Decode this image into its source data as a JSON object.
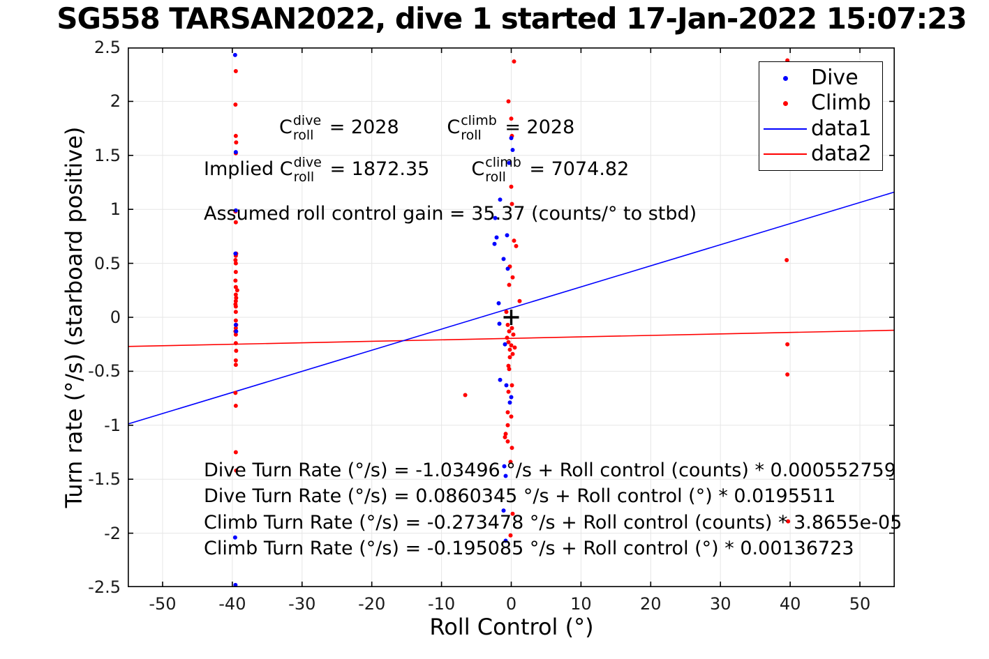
{
  "figure": {
    "background": "#ffffff",
    "axis_color": "#000000",
    "grid_color": "#e6e6e6",
    "dive_color": "#0000ff",
    "climb_color": "#ff0000"
  },
  "chart_data": {
    "type": "scatter",
    "title": "SG558 TARSAN2022, dive 1 started 17-Jan-2022 15:07:23",
    "xlabel": "Roll Control (°)",
    "ylabel": "Turn rate (°/s) (starboard positive)",
    "xlim": [
      -55,
      55
    ],
    "ylim": [
      -2.5,
      2.5
    ],
    "x_ticks": [
      -50,
      -40,
      -30,
      -20,
      -10,
      0,
      10,
      20,
      30,
      40,
      50
    ],
    "y_ticks": [
      -2.5,
      -2,
      -1.5,
      -1,
      -0.5,
      0,
      0.5,
      1,
      1.5,
      2,
      2.5
    ],
    "grid": true,
    "legend_position": "northeast",
    "legend": [
      {
        "label": "Dive",
        "marker": "dot",
        "color": "#0000ff"
      },
      {
        "label": "Climb",
        "marker": "dot",
        "color": "#ff0000"
      },
      {
        "label": "data1",
        "marker": "line",
        "color": "#0000ff"
      },
      {
        "label": "data2",
        "marker": "line",
        "color": "#ff0000"
      }
    ],
    "series": [
      {
        "name": "Dive",
        "color": "#0000ff",
        "marker": "dot",
        "points": [
          [
            -39.6,
            2.43
          ],
          [
            -39.5,
            1.53
          ],
          [
            -39.5,
            0.99
          ],
          [
            -39.55,
            0.59
          ],
          [
            -39.5,
            -0.07
          ],
          [
            -39.45,
            -0.13
          ],
          [
            -39.6,
            -2.04
          ],
          [
            -39.55,
            -2.48
          ],
          [
            0.0,
            1.66
          ],
          [
            0.2,
            1.55
          ],
          [
            -0.3,
            1.43
          ],
          [
            -1.6,
            1.09
          ],
          [
            -2.3,
            0.92
          ],
          [
            -0.6,
            0.76
          ],
          [
            -2.1,
            0.74
          ],
          [
            -2.4,
            0.68
          ],
          [
            -1.1,
            0.54
          ],
          [
            -0.5,
            0.45
          ],
          [
            -1.8,
            0.13
          ],
          [
            -1.7,
            -0.06
          ],
          [
            -0.9,
            -0.25
          ],
          [
            -1.6,
            -0.58
          ],
          [
            -0.7,
            -0.63
          ],
          [
            0.0,
            -0.74
          ],
          [
            -0.2,
            -0.79
          ],
          [
            -1.0,
            -1.38
          ],
          [
            -0.8,
            -1.47
          ],
          [
            -1.1,
            -1.79
          ],
          [
            -0.8,
            -2.07
          ]
        ]
      },
      {
        "name": "Climb",
        "color": "#ff0000",
        "marker": "dot",
        "points": [
          [
            -39.5,
            2.28
          ],
          [
            -39.55,
            1.97
          ],
          [
            -39.5,
            1.68
          ],
          [
            -39.45,
            1.62
          ],
          [
            -39.5,
            1.52
          ],
          [
            -39.55,
            0.98
          ],
          [
            -39.5,
            0.88
          ],
          [
            -39.45,
            0.59
          ],
          [
            -39.5,
            0.57
          ],
          [
            -39.55,
            0.53
          ],
          [
            -39.5,
            0.5
          ],
          [
            -39.5,
            0.42
          ],
          [
            -39.55,
            0.34
          ],
          [
            -39.5,
            0.28
          ],
          [
            -39.3,
            0.25
          ],
          [
            -39.5,
            0.21
          ],
          [
            -39.45,
            0.18
          ],
          [
            -39.5,
            0.15
          ],
          [
            -39.55,
            0.12
          ],
          [
            -39.5,
            0.1
          ],
          [
            -39.5,
            0.05
          ],
          [
            -39.5,
            -0.03
          ],
          [
            -39.45,
            -0.07
          ],
          [
            -39.5,
            -0.1
          ],
          [
            -39.55,
            -0.13
          ],
          [
            -39.5,
            -0.16
          ],
          [
            -39.5,
            -0.24
          ],
          [
            -39.45,
            -0.31
          ],
          [
            -39.5,
            -0.4
          ],
          [
            -39.5,
            -0.44
          ],
          [
            -39.55,
            -0.7
          ],
          [
            -39.5,
            -0.82
          ],
          [
            -39.5,
            -1.25
          ],
          [
            -39.45,
            -1.42
          ],
          [
            0.4,
            2.37
          ],
          [
            -0.4,
            2.0
          ],
          [
            0.0,
            1.84
          ],
          [
            0.1,
            1.68
          ],
          [
            0.0,
            1.21
          ],
          [
            0.1,
            1.05
          ],
          [
            0.4,
            0.71
          ],
          [
            0.7,
            0.66
          ],
          [
            -0.2,
            0.47
          ],
          [
            0.2,
            0.37
          ],
          [
            -0.3,
            0.3
          ],
          [
            1.2,
            0.15
          ],
          [
            -0.7,
            0.05
          ],
          [
            -0.5,
            -0.07
          ],
          [
            0.1,
            -0.1
          ],
          [
            -0.3,
            -0.13
          ],
          [
            0.3,
            -0.16
          ],
          [
            -0.6,
            -0.19
          ],
          [
            -0.4,
            -0.23
          ],
          [
            0.0,
            -0.26
          ],
          [
            0.5,
            -0.28
          ],
          [
            -0.2,
            -0.3
          ],
          [
            0.2,
            -0.34
          ],
          [
            -0.2,
            -0.37
          ],
          [
            -0.4,
            -0.45
          ],
          [
            -0.3,
            -0.48
          ],
          [
            0.1,
            -0.63
          ],
          [
            -0.4,
            -0.69
          ],
          [
            -0.5,
            -0.88
          ],
          [
            0.0,
            -0.92
          ],
          [
            -0.5,
            -1.0
          ],
          [
            -0.8,
            -1.08
          ],
          [
            -0.9,
            -1.11
          ],
          [
            -0.5,
            -1.15
          ],
          [
            0.1,
            -1.21
          ],
          [
            -0.1,
            -1.34
          ],
          [
            0.2,
            -1.82
          ],
          [
            -0.1,
            -2.02
          ],
          [
            39.6,
            2.38
          ],
          [
            39.5,
            0.53
          ],
          [
            39.6,
            -0.25
          ],
          [
            39.6,
            -0.53
          ],
          [
            39.7,
            -1.89
          ],
          [
            -6.6,
            -0.72
          ]
        ]
      }
    ],
    "lines": [
      {
        "name": "data1",
        "color": "#0000ff",
        "intercept": 0.0860345,
        "slope": 0.0195511
      },
      {
        "name": "data2",
        "color": "#ff0000",
        "intercept": -0.195085,
        "slope": 0.00136723
      }
    ],
    "origin_marker": {
      "x": 0,
      "y": 0,
      "symbol": "+",
      "color": "#000000"
    }
  },
  "annotations": {
    "c_line": [
      {
        "text": "C",
        "sup": "dive",
        "sub": "roll"
      },
      {
        "text": " = 2028"
      },
      {
        "text": "        "
      },
      {
        "text": "C",
        "sup": "climb",
        "sub": "roll"
      },
      {
        "text": " = 2028"
      }
    ],
    "implied_line": [
      {
        "text": "Implied C",
        "sup": "dive",
        "sub": "roll"
      },
      {
        "text": " = 1872.35"
      },
      {
        "text": "       "
      },
      {
        "text": "C",
        "sup": "climb",
        "sub": "roll"
      },
      {
        "text": " = 7074.82"
      }
    ],
    "gain_line": "Assumed roll control gain = 35.37 (counts/° to stbd)",
    "equations": [
      "Dive Turn Rate (°/s) = -1.03496 °/s + Roll control (counts) * 0.000552759",
      "Dive Turn Rate (°/s) = 0.0860345 °/s + Roll control (°) * 0.0195511",
      "Climb Turn Rate (°/s) = -0.273478 °/s + Roll control (counts) * 3.8655e-05",
      "Climb Turn Rate (°/s) = -0.195085 °/s + Roll control (°) * 0.00136723"
    ]
  }
}
